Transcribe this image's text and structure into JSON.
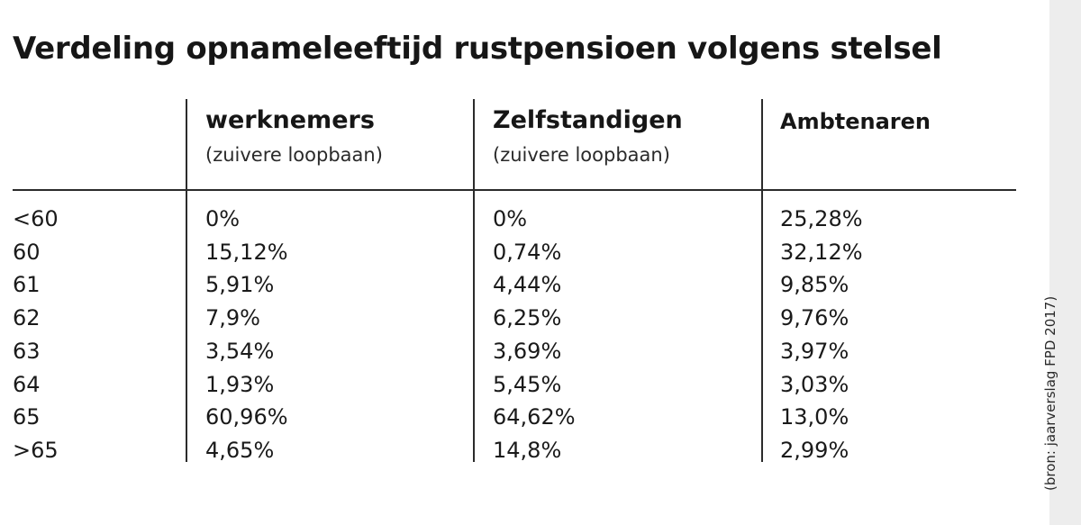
{
  "title": "Verdeling opnameleeftijd rustpensioen volgens stelsel",
  "source": "(bron: jaarverslag FPD 2017)",
  "columns": [
    {
      "title": "werknemers",
      "subtitle": "(zuivere loopbaan)"
    },
    {
      "title": "Zelfstandigen",
      "subtitle": "(zuivere loopbaan)"
    },
    {
      "title": "Ambtenaren",
      "subtitle": ""
    }
  ],
  "chart_data": {
    "type": "table",
    "title": "Verdeling opnameleeftijd rustpensioen volgens stelsel",
    "columns": [
      "",
      "werknemers (zuivere loopbaan)",
      "Zelfstandigen (zuivere loopbaan)",
      "Ambtenaren"
    ],
    "rows": [
      {
        "label": "<60",
        "values": [
          "0%",
          "0%",
          "25,28%"
        ]
      },
      {
        "label": "60",
        "values": [
          "15,12%",
          "0,74%",
          "32,12%"
        ]
      },
      {
        "label": "61",
        "values": [
          "5,91%",
          "4,44%",
          "9,85%"
        ]
      },
      {
        "label": "62",
        "values": [
          "7,9%",
          "6,25%",
          "9,76%"
        ]
      },
      {
        "label": "63",
        "values": [
          "3,54%",
          "3,69%",
          "3,97%"
        ]
      },
      {
        "label": "64",
        "values": [
          "1,93%",
          "5,45%",
          "3,03%"
        ]
      },
      {
        "label": "65",
        "values": [
          "60,96%",
          "64,62%",
          "13,0%"
        ]
      },
      {
        "label": ">65",
        "values": [
          "4,65%",
          "14,8%",
          "2,99%"
        ]
      }
    ]
  }
}
